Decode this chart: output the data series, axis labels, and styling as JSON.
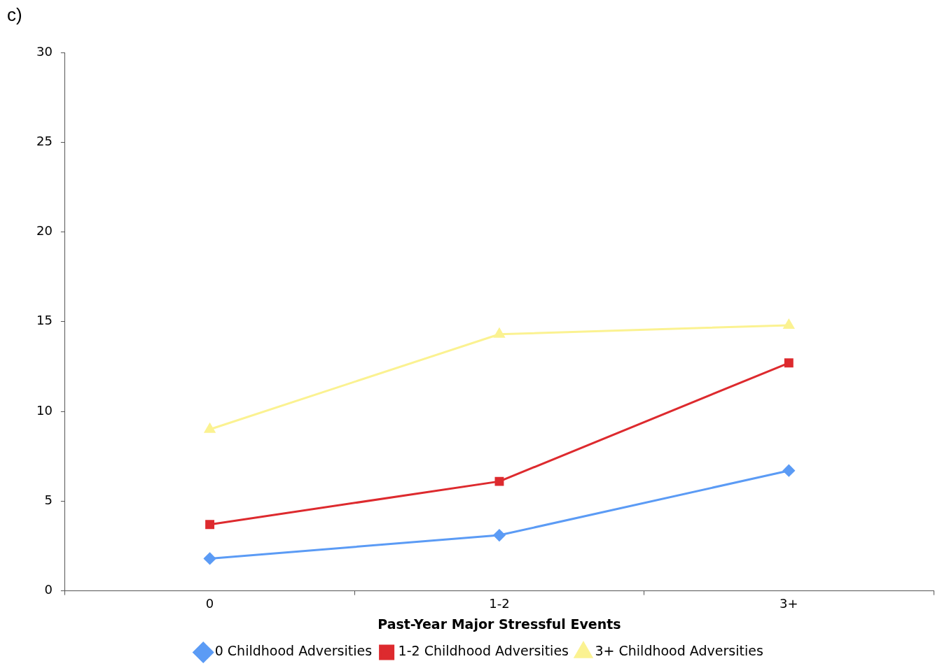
{
  "chart_data": {
    "type": "line",
    "xlabel": "Past-Year Major Stressful Events",
    "categories": [
      "0",
      "1-2",
      "3+"
    ],
    "series": [
      {
        "name": "0 Childhood Adversities",
        "color": "#5b9bf5",
        "values": [
          1.8,
          3.1,
          6.7
        ],
        "marker": "diamond"
      },
      {
        "name": "1-2 Childhood Adversities",
        "color": "#dd2a2e",
        "values": [
          3.7,
          6.1,
          12.7
        ],
        "marker": "square"
      },
      {
        "name": "3+ Childhood Adversities",
        "color": "#fbf291",
        "values": [
          9.0,
          14.3,
          14.8
        ],
        "marker": "triangle"
      }
    ],
    "ylim": [
      0,
      30
    ],
    "yticks": [
      0,
      5,
      10,
      15,
      20,
      25,
      30
    ],
    "grid": false,
    "legend": "bottom",
    "line_style": "solid",
    "annotations": [
      "c)"
    ]
  }
}
